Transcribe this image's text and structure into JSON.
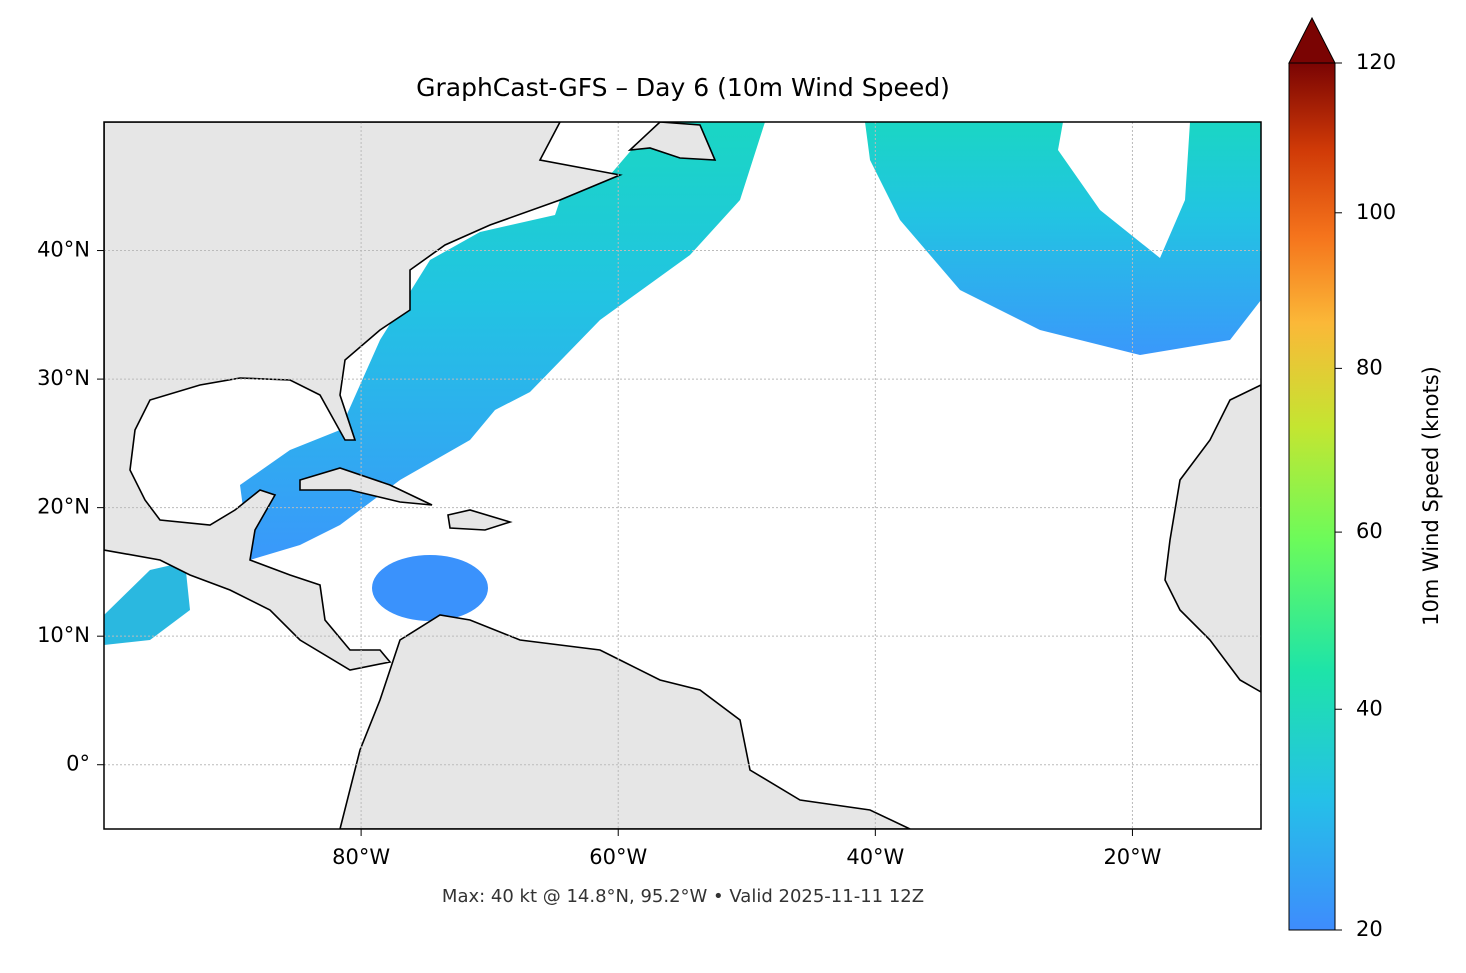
{
  "chart_data": {
    "type": "map",
    "title": "GraphCast-GFS – Day 6 (10m Wind Speed)",
    "footer": "Max: 40 kt @ 14.8°N, 95.2°W • Valid 2025-11-11 12Z",
    "xlim": [
      -100,
      -10
    ],
    "ylim": [
      -5,
      50
    ],
    "xticks": [
      {
        "value": -80,
        "label": "80°W"
      },
      {
        "value": -60,
        "label": "60°W"
      },
      {
        "value": -40,
        "label": "40°W"
      },
      {
        "value": -20,
        "label": "20°W"
      }
    ],
    "yticks": [
      {
        "value": 0,
        "label": "0°"
      },
      {
        "value": 10,
        "label": "10°N"
      },
      {
        "value": 20,
        "label": "20°N"
      },
      {
        "value": 30,
        "label": "30°N"
      },
      {
        "value": 40,
        "label": "40°N"
      }
    ],
    "grid": true,
    "colorbar": {
      "label": "10m Wind Speed (knots)",
      "clim": [
        20,
        120
      ],
      "ticks": [
        20,
        40,
        60,
        80,
        100,
        120
      ]
    }
  }
}
